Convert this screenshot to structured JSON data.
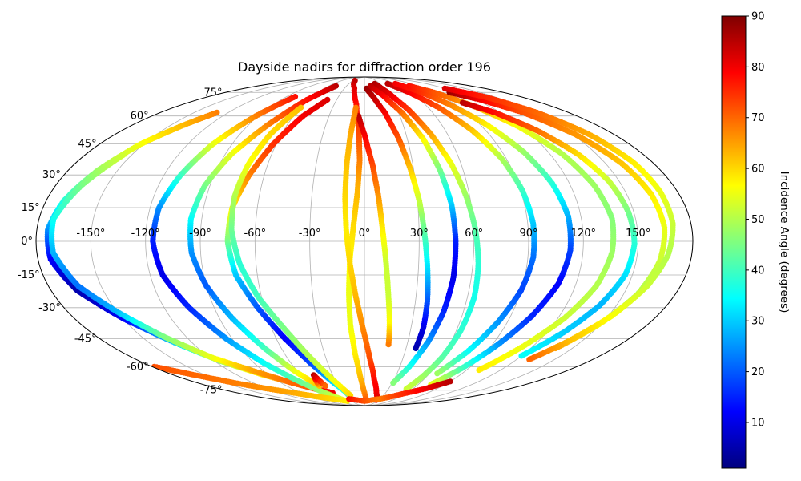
{
  "chart_data": {
    "type": "scatter",
    "projection": "mollweide",
    "title": "Dayside nadirs for diffraction order 196",
    "x_ticks": [
      "-150°",
      "-120°",
      "-90°",
      "-60°",
      "-30°",
      "0°",
      "30°",
      "60°",
      "90°",
      "120°",
      "150°"
    ],
    "y_ticks": [
      "75°",
      "60°",
      "45°",
      "30°",
      "15°",
      "0°",
      "-15°",
      "-30°",
      "-45°",
      "-60°",
      "-75°"
    ],
    "xlim": [
      -180,
      180
    ],
    "ylim": [
      -90,
      90
    ],
    "grid": true,
    "colorbar": {
      "label": "Incidence Angle (degrees)",
      "range": [
        1,
        90
      ],
      "ticks": [
        "10",
        "20",
        "30",
        "40",
        "50",
        "60",
        "70",
        "80",
        "90"
      ],
      "colormap": "jet"
    },
    "series": [
      {
        "points": [
          [
            -130,
            62,
            68
          ],
          [
            -140,
            55,
            63
          ],
          [
            -152,
            45,
            56
          ],
          [
            -162,
            32,
            48
          ],
          [
            -170,
            18,
            38
          ],
          [
            -174,
            5,
            25
          ],
          [
            -173,
            -8,
            12
          ],
          [
            -165,
            -22,
            5
          ],
          [
            -150,
            -35,
            11
          ],
          [
            -132,
            -47,
            30
          ],
          [
            -115,
            -57,
            48
          ],
          [
            -95,
            -65,
            60
          ],
          [
            -70,
            -72,
            73
          ],
          [
            -45,
            -77,
            80
          ]
        ]
      },
      {
        "points": [
          [
            -155,
            40,
            53
          ],
          [
            -165,
            25,
            45
          ],
          [
            -172,
            10,
            36
          ],
          [
            -171,
            -5,
            28
          ],
          [
            -163,
            -20,
            22
          ],
          [
            -150,
            -32,
            28
          ],
          [
            -135,
            -44,
            45
          ],
          [
            -118,
            -55,
            55
          ],
          [
            -98,
            -63,
            65
          ],
          [
            -78,
            -70,
            70
          ],
          [
            -58,
            -75,
            72
          ]
        ]
      },
      {
        "points": [
          [
            -80,
            72,
            78
          ],
          [
            -92,
            60,
            68
          ],
          [
            -103,
            45,
            55
          ],
          [
            -110,
            30,
            40
          ],
          [
            -115,
            15,
            25
          ],
          [
            -116,
            0,
            15
          ],
          [
            -113,
            -15,
            10
          ],
          [
            -105,
            -30,
            15
          ],
          [
            -94,
            -45,
            25
          ],
          [
            -82,
            -58,
            35
          ],
          [
            -70,
            -68,
            42
          ],
          [
            -58,
            -76,
            48
          ],
          [
            -44,
            -83,
            55
          ]
        ]
      },
      {
        "points": [
          [
            -48,
            80,
            85
          ],
          [
            -62,
            70,
            78
          ],
          [
            -75,
            55,
            68
          ],
          [
            -86,
            40,
            55
          ],
          [
            -93,
            25,
            45
          ],
          [
            -96,
            10,
            35
          ],
          [
            -95,
            -5,
            25
          ],
          [
            -90,
            -20,
            20
          ],
          [
            -82,
            -35,
            28
          ],
          [
            -72,
            -50,
            40
          ],
          [
            -62,
            -63,
            55
          ],
          [
            -52,
            -72,
            62
          ],
          [
            -48,
            -65,
            85
          ],
          [
            -45,
            -72,
            70
          ]
        ]
      },
      {
        "points": [
          [
            -40,
            70,
            82
          ],
          [
            -52,
            60,
            80
          ],
          [
            -62,
            45,
            75
          ],
          [
            -69,
            30,
            68
          ],
          [
            -74,
            15,
            58
          ],
          [
            -75,
            0,
            45
          ],
          [
            -72,
            -15,
            30
          ],
          [
            -64,
            -30,
            20
          ],
          [
            -54,
            -45,
            12
          ],
          [
            -44,
            -58,
            18
          ],
          [
            -34,
            -69,
            30
          ],
          [
            -24,
            -78,
            40
          ]
        ]
      },
      {
        "points": [
          [
            -60,
            65,
            62
          ],
          [
            -68,
            50,
            60
          ],
          [
            -72,
            35,
            56
          ],
          [
            -74,
            20,
            50
          ],
          [
            -73,
            5,
            44
          ],
          [
            -69,
            -10,
            38
          ],
          [
            -62,
            -25,
            40
          ],
          [
            -52,
            -40,
            45
          ],
          [
            -42,
            -55,
            50
          ],
          [
            -32,
            -68,
            55
          ],
          [
            -22,
            -79,
            60
          ]
        ]
      },
      {
        "points": [
          [
            -25,
            85,
            85
          ],
          [
            -15,
            78,
            82
          ],
          [
            -8,
            67,
            78
          ],
          [
            -4,
            52,
            73
          ],
          [
            -3,
            37,
            68
          ],
          [
            -4,
            22,
            63
          ],
          [
            -6,
            7,
            60
          ],
          [
            -8,
            -8,
            57
          ],
          [
            -9,
            -23,
            55
          ],
          [
            -9,
            -38,
            55
          ],
          [
            -7,
            -53,
            58
          ],
          [
            -4,
            -66,
            62
          ],
          [
            -1,
            -75,
            66
          ],
          [
            3,
            -82,
            70
          ]
        ]
      },
      {
        "points": [
          [
            -5,
            60,
            85
          ],
          [
            0,
            50,
            80
          ],
          [
            5,
            35,
            73
          ],
          [
            8,
            20,
            66
          ],
          [
            10,
            5,
            58
          ],
          [
            12,
            -10,
            52
          ],
          [
            14,
            -25,
            52
          ],
          [
            16,
            -38,
            57
          ],
          [
            17,
            -48,
            68
          ]
        ]
      },
      {
        "points": [
          [
            -8,
            65,
            68
          ],
          [
            -10,
            50,
            64
          ],
          [
            -11,
            35,
            62
          ],
          [
            -11,
            20,
            60
          ],
          [
            -10,
            5,
            58
          ],
          [
            -8,
            -10,
            60
          ],
          [
            -5,
            -25,
            63
          ],
          [
            -1,
            -40,
            67
          ],
          [
            4,
            -55,
            72
          ],
          [
            10,
            -68,
            78
          ],
          [
            17,
            -77,
            80
          ],
          [
            25,
            -83,
            82
          ]
        ]
      },
      {
        "points": [
          [
            3,
            78,
            88
          ],
          [
            10,
            72,
            85
          ],
          [
            18,
            62,
            80
          ],
          [
            24,
            48,
            72
          ],
          [
            28,
            33,
            62
          ],
          [
            31,
            18,
            52
          ],
          [
            33,
            3,
            42
          ],
          [
            35,
            -12,
            32
          ],
          [
            37,
            -27,
            20
          ],
          [
            38,
            -40,
            10
          ],
          [
            37,
            -50,
            5
          ]
        ]
      },
      {
        "points": [
          [
            20,
            82,
            86
          ],
          [
            30,
            75,
            82
          ],
          [
            40,
            64,
            75
          ],
          [
            48,
            50,
            65
          ],
          [
            54,
            35,
            55
          ],
          [
            58,
            20,
            48
          ],
          [
            61,
            5,
            42
          ],
          [
            63,
            -10,
            38
          ],
          [
            64,
            -25,
            36
          ],
          [
            63,
            -40,
            38
          ],
          [
            60,
            -55,
            42
          ],
          [
            56,
            -66,
            48
          ],
          [
            52,
            -74,
            52
          ]
        ]
      },
      {
        "points": [
          [
            10,
            80,
            85
          ],
          [
            22,
            73,
            80
          ],
          [
            33,
            62,
            70
          ],
          [
            41,
            48,
            58
          ],
          [
            46,
            32,
            45
          ],
          [
            49,
            16,
            30
          ],
          [
            50,
            0,
            15
          ],
          [
            50,
            -16,
            10
          ],
          [
            48,
            -32,
            15
          ],
          [
            44,
            -47,
            25
          ],
          [
            38,
            -60,
            36
          ],
          [
            31,
            -70,
            46
          ]
        ]
      },
      {
        "points": [
          [
            45,
            82,
            85
          ],
          [
            58,
            75,
            80
          ],
          [
            70,
            65,
            72
          ],
          [
            80,
            52,
            62
          ],
          [
            87,
            38,
            50
          ],
          [
            91,
            23,
            40
          ],
          [
            93,
            8,
            30
          ],
          [
            93,
            -7,
            22
          ],
          [
            90,
            -22,
            18
          ],
          [
            84,
            -37,
            25
          ],
          [
            76,
            -52,
            35
          ],
          [
            67,
            -64,
            48
          ]
        ]
      },
      {
        "points": [
          [
            60,
            82,
            80
          ],
          [
            72,
            76,
            76
          ],
          [
            84,
            67,
            68
          ],
          [
            95,
            55,
            58
          ],
          [
            104,
            41,
            48
          ],
          [
            110,
            26,
            38
          ],
          [
            113,
            11,
            28
          ],
          [
            113,
            -4,
            18
          ],
          [
            110,
            -19,
            12
          ],
          [
            103,
            -34,
            15
          ],
          [
            94,
            -48,
            25
          ],
          [
            84,
            -61,
            40
          ],
          [
            74,
            -71,
            55
          ]
        ]
      },
      {
        "points": [
          [
            75,
            80,
            78
          ],
          [
            90,
            75,
            72
          ],
          [
            105,
            66,
            64
          ],
          [
            118,
            54,
            56
          ],
          [
            128,
            40,
            50
          ],
          [
            134,
            25,
            48
          ],
          [
            137,
            10,
            46
          ],
          [
            136,
            -5,
            48
          ],
          [
            132,
            -20,
            50
          ],
          [
            124,
            -35,
            52
          ],
          [
            113,
            -49,
            55
          ],
          [
            101,
            -62,
            58
          ]
        ]
      },
      {
        "points": [
          [
            110,
            75,
            88
          ],
          [
            125,
            70,
            80
          ],
          [
            140,
            62,
            72
          ],
          [
            152,
            50,
            66
          ],
          [
            160,
            36,
            62
          ],
          [
            164,
            21,
            58
          ],
          [
            165,
            6,
            55
          ],
          [
            163,
            -9,
            52
          ],
          [
            158,
            -24,
            50
          ],
          [
            149,
            -38,
            55
          ],
          [
            138,
            -50,
            65
          ]
        ]
      },
      {
        "points": [
          [
            100,
            68,
            85
          ],
          [
            115,
            62,
            78
          ],
          [
            128,
            52,
            70
          ],
          [
            138,
            40,
            60
          ],
          [
            144,
            27,
            52
          ],
          [
            147,
            13,
            45
          ],
          [
            148,
            -1,
            38
          ],
          [
            146,
            -15,
            32
          ],
          [
            140,
            -29,
            28
          ],
          [
            131,
            -42,
            30
          ],
          [
            120,
            -54,
            35
          ]
        ]
      },
      {
        "points": [
          [
            120,
            78,
            82
          ],
          [
            138,
            72,
            76
          ],
          [
            152,
            62,
            70
          ],
          [
            162,
            50,
            64
          ],
          [
            168,
            36,
            58
          ],
          [
            170,
            22,
            55
          ],
          [
            170,
            8,
            52
          ],
          [
            167,
            -6,
            50
          ],
          [
            161,
            -20,
            52
          ],
          [
            152,
            -34,
            56
          ],
          [
            141,
            -46,
            62
          ],
          [
            130,
            -56,
            70
          ]
        ]
      },
      {
        "points": [
          [
            -178,
            -60,
            72
          ],
          [
            -160,
            -65,
            70
          ],
          [
            -140,
            -70,
            68
          ],
          [
            -120,
            -74,
            66
          ],
          [
            -100,
            -77,
            64
          ],
          [
            -80,
            -80,
            62
          ],
          [
            -60,
            -82,
            60
          ],
          [
            -40,
            -84,
            58
          ]
        ]
      },
      {
        "points": [
          [
            -30,
            -82,
            78
          ],
          [
            -15,
            -83,
            75
          ],
          [
            0,
            -84,
            72
          ],
          [
            15,
            -83,
            70
          ],
          [
            30,
            -82,
            68
          ],
          [
            45,
            -80,
            72
          ],
          [
            60,
            -77,
            76
          ],
          [
            75,
            -74,
            80
          ],
          [
            90,
            -69,
            85
          ]
        ]
      }
    ]
  }
}
